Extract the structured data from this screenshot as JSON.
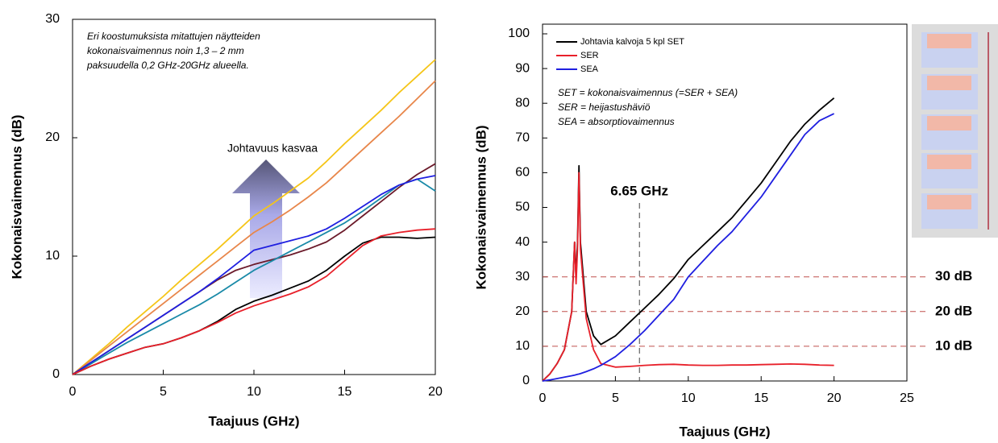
{
  "chart_data": [
    {
      "type": "line",
      "xlabel": "Taajuus (GHz)",
      "ylabel": "Kokonaisvaimennus (dB)",
      "x": [
        0,
        1,
        2,
        3,
        4,
        5,
        6,
        7,
        8,
        9,
        10,
        11,
        12,
        13,
        14,
        15,
        16,
        17,
        18,
        19,
        20
      ],
      "xlim": [
        0,
        20
      ],
      "ylim": [
        0,
        30
      ],
      "xticks": [
        0,
        5,
        10,
        15,
        20
      ],
      "yticks": [
        0,
        10,
        20,
        30
      ],
      "series": [
        {
          "color": "#f5c518",
          "values": [
            0,
            1.3,
            2.6,
            4,
            5.3,
            6.6,
            8,
            9.3,
            10.6,
            12,
            13.4,
            14.4,
            15.5,
            16.6,
            18,
            19.5,
            20.9,
            22.3,
            23.8,
            25.2,
            26.6
          ]
        },
        {
          "color": "#e8864a",
          "values": [
            0,
            1.2,
            2.4,
            3.6,
            4.8,
            6,
            7.2,
            8.4,
            9.6,
            10.8,
            12,
            12.9,
            13.9,
            15,
            16.2,
            17.6,
            19,
            20.4,
            21.8,
            23.3,
            24.8
          ]
        },
        {
          "color": "#6b1a2a",
          "values": [
            0,
            1,
            2,
            3,
            4,
            5,
            6,
            7,
            8,
            8.8,
            9.3,
            9.7,
            10.1,
            10.6,
            11.2,
            12.2,
            13.4,
            14.6,
            15.8,
            16.9,
            17.8
          ]
        },
        {
          "color": "#1a8aa8",
          "values": [
            0,
            0.9,
            1.8,
            2.7,
            3.5,
            4.3,
            5.1,
            5.9,
            6.8,
            7.8,
            8.8,
            9.6,
            10.4,
            11.2,
            12,
            12.8,
            13.8,
            14.9,
            16,
            16.5,
            15.5
          ]
        },
        {
          "color": "#1f1fe0",
          "values": [
            0,
            1,
            2,
            3,
            4,
            5,
            6,
            7,
            8.1,
            9.3,
            10.5,
            10.9,
            11.3,
            11.7,
            12.3,
            13.2,
            14.2,
            15.2,
            16,
            16.5,
            16.8
          ]
        },
        {
          "color": "#000000",
          "values": [
            0,
            0.7,
            1.3,
            1.8,
            2.3,
            2.6,
            3.1,
            3.7,
            4.5,
            5.5,
            6.2,
            6.7,
            7.3,
            7.9,
            8.8,
            10,
            11.1,
            11.6,
            11.6,
            11.5,
            11.6
          ]
        },
        {
          "color": "#e8202a",
          "values": [
            0,
            0.7,
            1.3,
            1.8,
            2.3,
            2.6,
            3.1,
            3.7,
            4.4,
            5.2,
            5.8,
            6.3,
            6.8,
            7.4,
            8.3,
            9.6,
            10.9,
            11.7,
            12,
            12.2,
            12.3
          ]
        }
      ],
      "annotations": [
        "Eri koostumuksista mitattujen näytteiden",
        "kokonaisvaimennus noin 1,3 – 2 mm",
        "paksuudella 0,2 GHz-20GHz alueella."
      ],
      "arrow_label": "Johtavuus kasvaa"
    },
    {
      "type": "line",
      "xlabel": "Taajuus (GHz)",
      "ylabel": "Kokonaisvaimennus (dB)",
      "x": [
        0,
        0.5,
        1,
        1.5,
        2,
        2.2,
        2.3,
        2.4,
        2.5,
        2.6,
        3,
        3.5,
        4,
        5,
        6,
        7,
        8,
        9,
        10,
        11,
        12,
        13,
        14,
        15,
        16,
        17,
        18,
        19,
        20
      ],
      "xlim": [
        0,
        25
      ],
      "ylim": [
        0,
        100
      ],
      "xticks": [
        0,
        5,
        10,
        15,
        20,
        25
      ],
      "yticks": [
        0,
        10,
        20,
        30,
        40,
        50,
        60,
        70,
        80,
        90,
        100
      ],
      "legend": "upper left",
      "series": [
        {
          "name": "Johtavia kalvoja 5 kpl SET",
          "color": "#000000",
          "values": [
            0,
            2,
            5,
            9,
            20,
            40,
            30,
            40,
            62,
            40,
            20,
            13,
            10.5,
            13,
            17,
            21,
            25,
            29.5,
            35,
            39,
            43,
            47,
            52,
            57,
            63,
            69,
            74,
            78,
            81.5
          ]
        },
        {
          "name": "SER",
          "color": "#e8202a",
          "values": [
            0,
            2,
            5,
            9,
            20,
            40,
            28,
            38,
            60,
            38,
            18,
            9,
            5,
            4,
            4.2,
            4.5,
            4.7,
            4.8,
            4.6,
            4.5,
            4.5,
            4.6,
            4.6,
            4.7,
            4.8,
            4.9,
            4.8,
            4.6,
            4.5
          ]
        },
        {
          "name": "SEA",
          "color": "#1f1fe0",
          "values": [
            0,
            0.3,
            0.7,
            1.1,
            1.5,
            1.7,
            1.8,
            1.9,
            2,
            2.1,
            2.7,
            3.5,
            4.5,
            7,
            10.5,
            14.5,
            19,
            23.5,
            30,
            34.5,
            39,
            43,
            48,
            53,
            59,
            65,
            71,
            75,
            77
          ]
        }
      ],
      "annotations": [
        "SET = kokonaisvaimennus (=SER + SEA)",
        "SER = heijastushäviö",
        "SEA = absorptiovaimennus"
      ],
      "hlines": [
        {
          "value": 30,
          "label": "30 dB"
        },
        {
          "value": 20,
          "label": "20 dB"
        },
        {
          "value": 10,
          "label": "10 dB"
        }
      ],
      "vline": {
        "value": 6.65,
        "label": "6.65 GHz"
      }
    }
  ]
}
